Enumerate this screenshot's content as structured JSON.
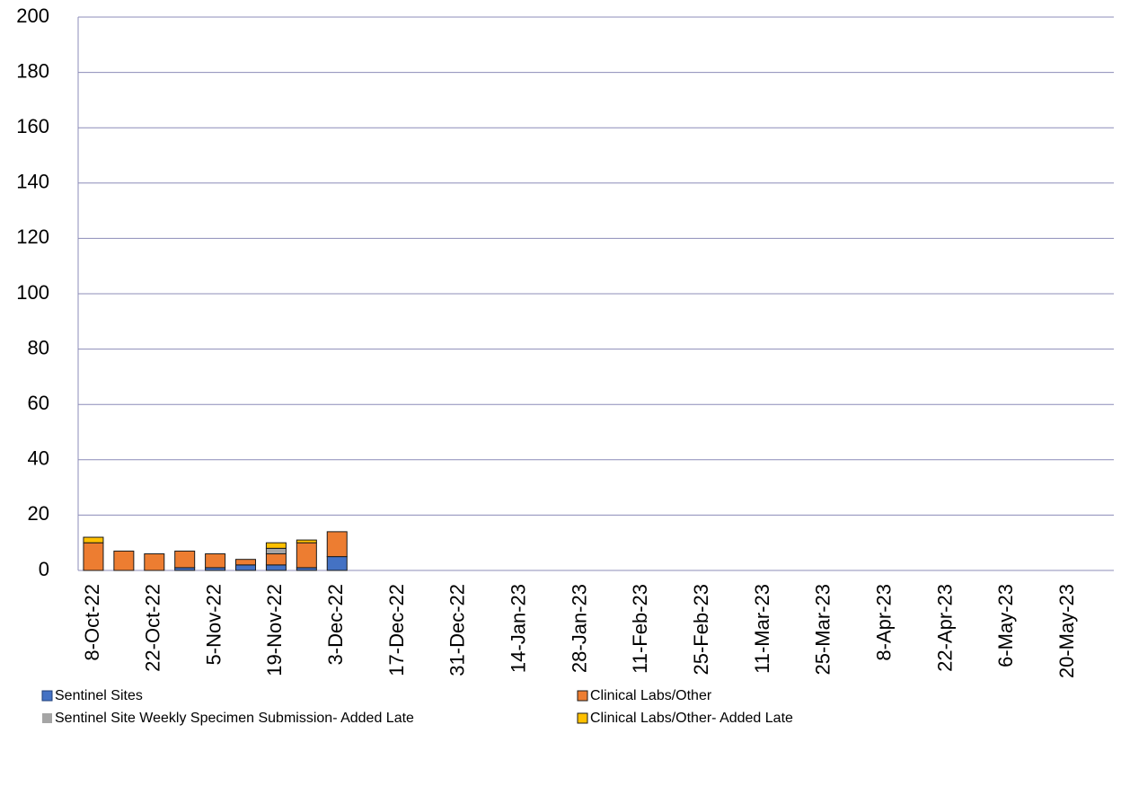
{
  "chart_data": {
    "type": "stacked_bar",
    "categories": [
      "8-Oct-22",
      null,
      "22-Oct-22",
      null,
      "5-Nov-22",
      null,
      "19-Nov-22",
      null,
      "3-Dec-22",
      null,
      "17-Dec-22",
      null,
      "31-Dec-22",
      null,
      "14-Jan-23",
      null,
      "28-Jan-23",
      null,
      "11-Feb-23",
      null,
      "25-Feb-23",
      null,
      "11-Mar-23",
      null,
      "25-Mar-23",
      null,
      "8-Apr-23",
      null,
      "22-Apr-23",
      null,
      "6-May-23",
      null,
      "20-May-23",
      null
    ],
    "series": [
      {
        "name": "Sentinel Sites",
        "color": "#4472c4",
        "values": [
          0,
          0,
          0,
          1,
          1,
          2,
          2,
          1,
          5,
          null,
          null,
          null,
          null,
          null,
          null,
          null,
          null,
          null,
          null,
          null,
          null,
          null,
          null,
          null,
          null,
          null,
          null,
          null,
          null,
          null,
          null,
          null,
          null,
          null
        ]
      },
      {
        "name": "Clinical Labs/Other",
        "color": "#ed7d31",
        "values": [
          10,
          7,
          6,
          6,
          5,
          2,
          4,
          9,
          9,
          null,
          null,
          null,
          null,
          null,
          null,
          null,
          null,
          null,
          null,
          null,
          null,
          null,
          null,
          null,
          null,
          null,
          null,
          null,
          null,
          null,
          null,
          null,
          null,
          null
        ]
      },
      {
        "name": "Sentinel Site Weekly Specimen Submission- Added Late",
        "color": "#a5a5a5",
        "values": [
          0,
          0,
          0,
          0,
          0,
          0,
          2,
          0,
          0,
          null,
          null,
          null,
          null,
          null,
          null,
          null,
          null,
          null,
          null,
          null,
          null,
          null,
          null,
          null,
          null,
          null,
          null,
          null,
          null,
          null,
          null,
          null,
          null,
          null
        ]
      },
      {
        "name": "Clinical Labs/Other- Added Late",
        "color": "#ffc000",
        "values": [
          2,
          0,
          0,
          0,
          0,
          0,
          2,
          1,
          0,
          null,
          null,
          null,
          null,
          null,
          null,
          null,
          null,
          null,
          null,
          null,
          null,
          null,
          null,
          null,
          null,
          null,
          null,
          null,
          null,
          null,
          null,
          null,
          null,
          null
        ]
      }
    ],
    "ylim": [
      0,
      200
    ],
    "yticks": [
      0,
      20,
      40,
      60,
      80,
      100,
      120,
      140,
      160,
      180,
      200
    ],
    "grid": true
  }
}
